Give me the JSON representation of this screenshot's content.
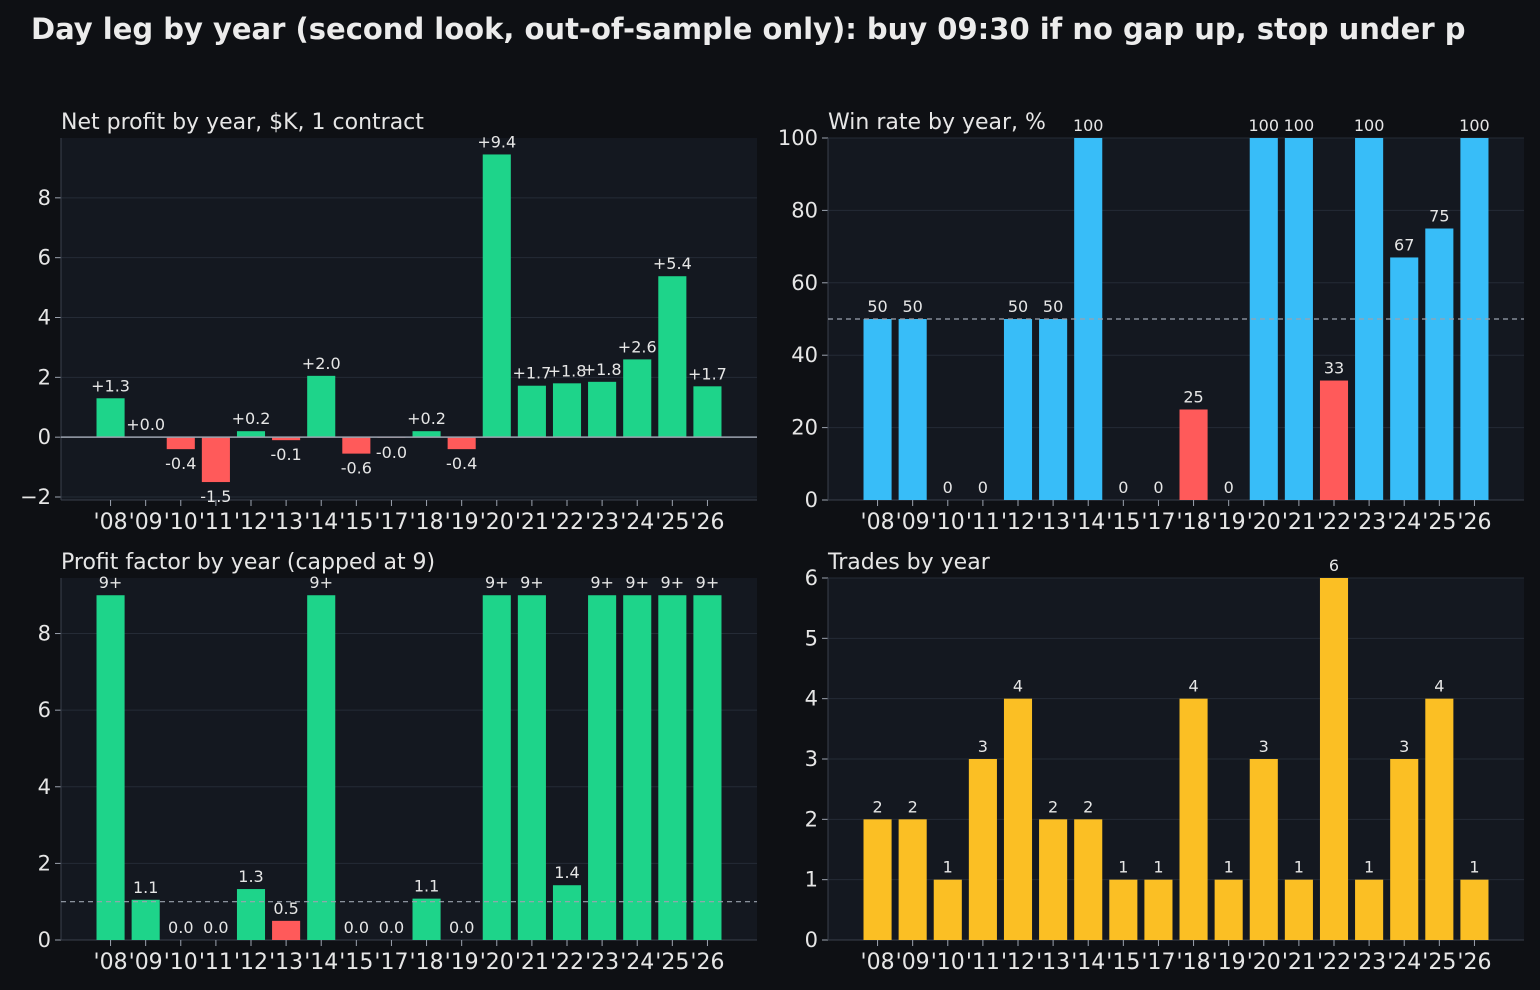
{
  "suptitle": "Day leg by year (second look, out-of-sample only): buy 09:30 if no gap up, stop under p",
  "colors": {
    "background": "#0e1014",
    "panel": "#141820",
    "positive": "#1ed48a",
    "negative": "#ff5a5a",
    "winrate": "#38bdf8",
    "trades": "#fbbf24",
    "reference_line": "#9ca3af"
  },
  "chart_data": [
    {
      "id": "net-profit",
      "type": "bar",
      "title": "Net profit by year, $K, 1 contract",
      "categories": [
        "'08",
        "'09",
        "'10",
        "'11",
        "'12",
        "'13",
        "'14",
        "'15",
        "'17",
        "'18",
        "'19",
        "'20",
        "'21",
        "'22",
        "'23",
        "'24",
        "'25",
        "'26"
      ],
      "values": [
        1.3,
        0.0,
        -0.4,
        -1.5,
        0.2,
        -0.1,
        2.05,
        -0.55,
        -0.02,
        0.2,
        -0.4,
        9.45,
        1.72,
        1.8,
        1.85,
        2.6,
        5.38,
        1.7
      ],
      "labels": [
        "+1.3",
        "+0.0",
        "-0.4",
        "-1.5",
        "+0.2",
        "-0.1",
        "+2.0",
        "-0.6",
        "-0.0",
        "+0.2",
        "-0.4",
        "+9.4",
        "+1.7",
        "+1.8",
        "+1.8",
        "+2.6",
        "+5.4",
        "+1.7"
      ],
      "yticks": [
        "−2",
        "0",
        "2",
        "4",
        "6",
        "8"
      ],
      "ylim": [
        -2.1,
        10
      ],
      "zero_line": true,
      "color_rule": "sign"
    },
    {
      "id": "win-rate",
      "type": "bar",
      "title": "Win rate by year, %",
      "categories": [
        "'08",
        "'09",
        "'10",
        "'11",
        "'12",
        "'13",
        "'14",
        "'15",
        "'17",
        "'18",
        "'19",
        "'20",
        "'21",
        "'22",
        "'23",
        "'24",
        "'25",
        "'26"
      ],
      "values": [
        50,
        50,
        0,
        0,
        50,
        50,
        100,
        0,
        0,
        25,
        0,
        100,
        100,
        33,
        100,
        67,
        75,
        100
      ],
      "labels": [
        "50",
        "50",
        "0",
        "0",
        "50",
        "50",
        "100",
        "0",
        "0",
        "25",
        "0",
        "100",
        "100",
        "33",
        "100",
        "67",
        "75",
        "100"
      ],
      "yticks": [
        "0",
        "20",
        "40",
        "60",
        "80",
        "100"
      ],
      "ylim": [
        0,
        100
      ],
      "reference_line": 50,
      "color_rule": "threshold50"
    },
    {
      "id": "profit-factor",
      "type": "bar",
      "title": "Profit factor by year (capped at 9)",
      "categories": [
        "'08",
        "'09",
        "'10",
        "'11",
        "'12",
        "'13",
        "'14",
        "'15",
        "'17",
        "'18",
        "'19",
        "'20",
        "'21",
        "'22",
        "'23",
        "'24",
        "'25",
        "'26"
      ],
      "values": [
        9,
        1.05,
        0,
        0,
        1.33,
        0.5,
        9,
        0,
        0,
        1.08,
        0,
        9,
        9,
        1.43,
        9,
        9,
        9,
        9
      ],
      "labels": [
        "9+",
        "1.1",
        "0.0",
        "0.0",
        "1.3",
        "0.5",
        "9+",
        "0.0",
        "0.0",
        "1.1",
        "0.0",
        "9+",
        "9+",
        "1.4",
        "9+",
        "9+",
        "9+",
        "9+"
      ],
      "yticks": [
        "0",
        "2",
        "4",
        "6",
        "8"
      ],
      "ylim": [
        0,
        9.45
      ],
      "reference_line": 1,
      "color_rule": "threshold1"
    },
    {
      "id": "trades",
      "type": "bar",
      "title": "Trades by year",
      "categories": [
        "'08",
        "'09",
        "'10",
        "'11",
        "'12",
        "'13",
        "'14",
        "'15",
        "'17",
        "'18",
        "'19",
        "'20",
        "'21",
        "'22",
        "'23",
        "'24",
        "'25",
        "'26"
      ],
      "values": [
        2,
        2,
        1,
        3,
        4,
        2,
        2,
        1,
        1,
        4,
        1,
        3,
        1,
        6,
        1,
        3,
        4,
        1
      ],
      "labels": [
        "2",
        "2",
        "1",
        "3",
        "4",
        "2",
        "2",
        "1",
        "1",
        "4",
        "1",
        "3",
        "1",
        "6",
        "1",
        "3",
        "4",
        "1"
      ],
      "yticks": [
        "0",
        "1",
        "2",
        "3",
        "4",
        "5",
        "6"
      ],
      "ylim": [
        0,
        6
      ],
      "color_rule": "trades"
    }
  ]
}
